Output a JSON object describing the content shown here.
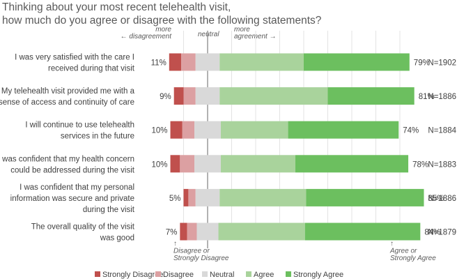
{
  "chart_data": {
    "type": "bar",
    "subtype": "diverging-stacked-bar",
    "title": "Thinking about your most recent telehealth visit,\nhow much do you agree or disagree with the following statements?",
    "categories": [
      "I was very satisfied with the care I\nreceived during that visit",
      "My telehealth visit provided me with a\nsense of access and continuity of care",
      "I will continue to use telehealth\nservices in the future",
      "I was confident that my health concern\ncould be addressed during the visit",
      "I was confident that my personal\ninformation was secure and private\nduring the visit",
      "The overall quality of the visit\nwas good"
    ],
    "series": [
      {
        "name": "Strongly Disagree",
        "color": "#c0504d",
        "values": [
          5,
          4,
          5,
          4,
          2,
          3
        ]
      },
      {
        "name": "Disagree",
        "color": "#dca0a2",
        "values": [
          6,
          5,
          5,
          6,
          3,
          4
        ]
      },
      {
        "name": "Neutral",
        "color": "#d9d9d9",
        "values": [
          10,
          10,
          11,
          11,
          10,
          9
        ]
      },
      {
        "name": "Agree",
        "color": "#a9d39c",
        "values": [
          35,
          45,
          28,
          31,
          36,
          36
        ]
      },
      {
        "name": "Strongly Agree",
        "color": "#6cbf5f",
        "values": [
          44,
          36,
          46,
          47,
          49,
          48
        ]
      }
    ],
    "neutral_split": 0.5,
    "disagree_totals": [
      "11%",
      "9%",
      "10%",
      "10%",
      "5%",
      "7%"
    ],
    "agree_totals": [
      "79%",
      "81%",
      "74%",
      "78%",
      "85%",
      "84%"
    ],
    "n_labels": [
      "N=1902",
      "N=1886",
      "N=1884",
      "N=1883",
      "N=1886",
      "N=1879"
    ],
    "annotations": {
      "more_disagreement": "more\n← disagreement",
      "neutral": "neutral",
      "more_agreement": "more\nagreement →",
      "bottom_left": "↑\nDisagree or\nStrongly Disagree",
      "bottom_right": "↑\nAgree or\nStrongly Agree"
    },
    "legend_position": "bottom",
    "grid": true
  }
}
